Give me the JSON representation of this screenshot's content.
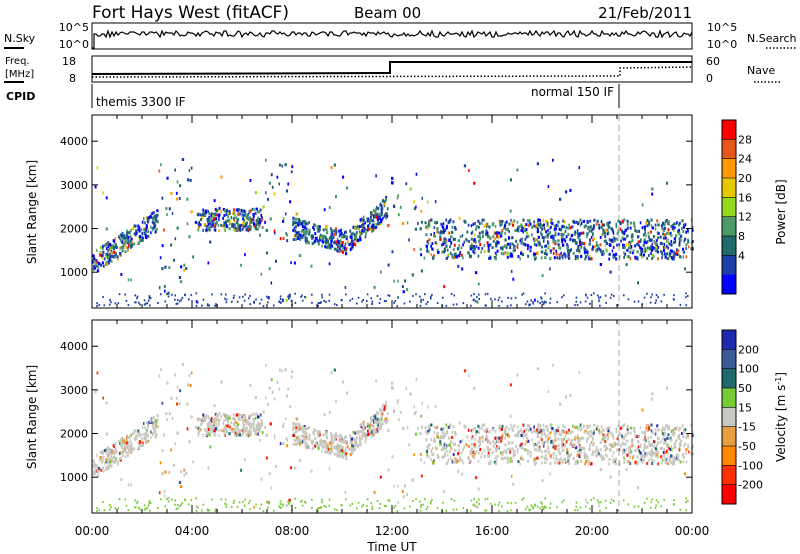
{
  "header": {
    "station": "Fort Hays West (fitACF)",
    "beam": "Beam 00",
    "date": "21/Feb/2011"
  },
  "noise_panel": {
    "left_label": "N.Sky",
    "left_ticks": [
      "10^5",
      "10^0"
    ],
    "right_ticks": [
      "10^5",
      "10^0"
    ],
    "right_label": "N.Search"
  },
  "freq_panel": {
    "left_label_1": "Freq.",
    "left_label_2": "[MHz]",
    "left_ticks": [
      "18",
      "8"
    ],
    "right_ticks": [
      "60",
      "0"
    ],
    "right_label": "Nave"
  },
  "cpid_panel": {
    "label": "CPID",
    "modes": [
      "themis 3300 IF",
      "normal 150 IF"
    ]
  },
  "chart_data": [
    {
      "type": "heatmap",
      "panel": "power",
      "ylabel": "Slant Range [km]",
      "yticks": [
        "4000",
        "3000",
        "2000",
        "1000"
      ],
      "xticks": [
        "00:00",
        "04:00",
        "08:00",
        "12:00",
        "16:00",
        "20:00",
        "00:00"
      ],
      "colorbar": {
        "label": "Power [dB]",
        "ticks": [
          "28",
          "24",
          "20",
          "16",
          "12",
          "8",
          "4"
        ],
        "colors": [
          "#ff0000",
          "#e6561a",
          "#ff9900",
          "#e6c800",
          "#94d91c",
          "#4c9a6a",
          "#1f6a6a",
          "#1d3fa8",
          "#0000ff"
        ]
      },
      "xlim": [
        0,
        24
      ],
      "ylim": [
        180,
        4600
      ],
      "mode_change_hour": 21
    },
    {
      "type": "heatmap",
      "panel": "velocity",
      "ylabel": "Slant Range [km]",
      "yticks": [
        "4000",
        "3000",
        "2000",
        "1000"
      ],
      "xticks": [
        "00:00",
        "04:00",
        "08:00",
        "12:00",
        "16:00",
        "20:00",
        "00:00"
      ],
      "xlabel": "Time UT",
      "colorbar": {
        "label": "Velocity [m s^-1]",
        "ticks": [
          "200",
          "100",
          "50",
          "15",
          "-15",
          "-50",
          "-100",
          "-200"
        ],
        "colors": [
          "#1f28b0",
          "#3a5a9a",
          "#1f6a6a",
          "#77cc33",
          "#c8c8c0",
          "#e6a040",
          "#ff8800",
          "#ff3000",
          "#ff0000"
        ]
      },
      "xlim": [
        0,
        24
      ],
      "ylim": [
        180,
        4600
      ],
      "mode_change_hour": 21
    }
  ]
}
